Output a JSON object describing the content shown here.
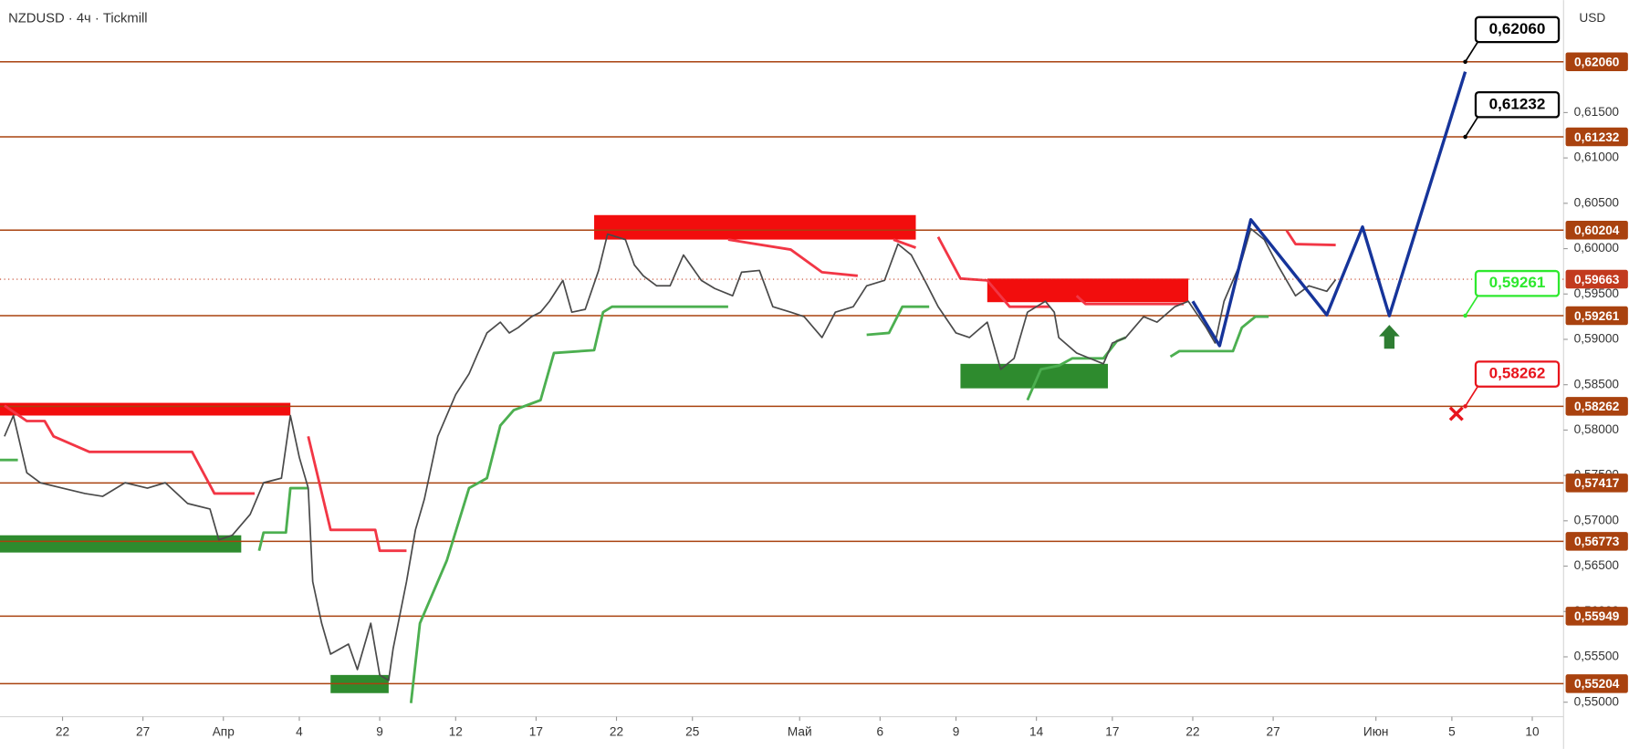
{
  "chart_data": {
    "type": "price-chart",
    "title": "NZDUSD · 4ч · Tickmill",
    "currency": "USD",
    "xlim": [
      0,
      350
    ],
    "ylim": [
      0.5484,
      0.6274
    ],
    "xticks": [
      {
        "value": 14,
        "label": "22"
      },
      {
        "value": 32,
        "label": "27"
      },
      {
        "value": 50,
        "label": "Апр"
      },
      {
        "value": 67,
        "label": "4"
      },
      {
        "value": 85,
        "label": "9"
      },
      {
        "value": 102,
        "label": "12"
      },
      {
        "value": 120,
        "label": "17"
      },
      {
        "value": 138,
        "label": "22"
      },
      {
        "value": 155,
        "label": "25"
      },
      {
        "value": 179,
        "label": "Май"
      },
      {
        "value": 197,
        "label": "6"
      },
      {
        "value": 214,
        "label": "9"
      },
      {
        "value": 232,
        "label": "14"
      },
      {
        "value": 249,
        "label": "17"
      },
      {
        "value": 267,
        "label": "22"
      },
      {
        "value": 285,
        "label": "27"
      },
      {
        "value": 308,
        "label": "Июн"
      },
      {
        "value": 325,
        "label": "5"
      },
      {
        "value": 343,
        "label": "10"
      }
    ],
    "yticks": [
      {
        "value": 0.55,
        "label": "0,55000"
      },
      {
        "value": 0.555,
        "label": "0,55500"
      },
      {
        "value": 0.56,
        "label": "0,56000"
      },
      {
        "value": 0.565,
        "label": "0,56500"
      },
      {
        "value": 0.57,
        "label": "0,57000"
      },
      {
        "value": 0.575,
        "label": "0,57500"
      },
      {
        "value": 0.58,
        "label": "0,58000"
      },
      {
        "value": 0.585,
        "label": "0,58500"
      },
      {
        "value": 0.59,
        "label": "0,59000"
      },
      {
        "value": 0.595,
        "label": "0,59500"
      },
      {
        "value": 0.6,
        "label": "0,60000"
      },
      {
        "value": 0.605,
        "label": "0,60500"
      },
      {
        "value": 0.61,
        "label": "0,61000"
      },
      {
        "value": 0.615,
        "label": "0,61500"
      }
    ],
    "grid": false,
    "price": {
      "color": "#4a4a4a",
      "x": [
        1,
        3,
        6,
        9,
        14,
        19,
        23,
        28,
        33,
        37,
        42,
        47,
        49,
        52,
        56,
        59,
        63,
        65,
        67,
        69,
        70,
        72,
        74,
        78,
        80,
        83,
        85,
        87,
        88,
        91,
        93,
        95,
        98,
        100,
        102,
        105,
        107,
        109,
        112,
        114,
        116,
        119,
        121,
        123,
        126,
        128,
        131,
        134,
        136,
        140,
        142,
        144,
        147,
        150,
        153,
        157,
        160,
        164,
        166,
        170,
        173,
        177,
        180,
        184,
        187,
        191,
        194,
        198,
        201,
        204,
        207,
        210,
        214,
        217,
        221,
        224,
        227,
        230,
        234,
        236,
        237,
        241,
        244,
        247,
        249,
        252,
        256,
        259,
        263,
        266,
        270,
        272,
        274,
        278,
        280,
        283,
        286,
        290,
        293,
        297,
        299
      ],
      "values": [
        0.5793,
        0.5816,
        0.5753,
        0.5742,
        0.5736,
        0.573,
        0.5727,
        0.5742,
        0.5736,
        0.5742,
        0.5719,
        0.5713,
        0.5679,
        0.5684,
        0.5707,
        0.5742,
        0.5747,
        0.5816,
        0.577,
        0.5736,
        0.5633,
        0.5587,
        0.5553,
        0.5564,
        0.5536,
        0.5587,
        0.553,
        0.5524,
        0.5559,
        0.5633,
        0.569,
        0.5724,
        0.5793,
        0.5816,
        0.5839,
        0.5862,
        0.5885,
        0.5907,
        0.5919,
        0.5907,
        0.5913,
        0.5925,
        0.593,
        0.5942,
        0.5965,
        0.593,
        0.5933,
        0.5976,
        0.6016,
        0.601,
        0.5982,
        0.597,
        0.5959,
        0.5959,
        0.5993,
        0.5965,
        0.5956,
        0.5948,
        0.5974,
        0.5976,
        0.5936,
        0.593,
        0.5925,
        0.5902,
        0.593,
        0.5936,
        0.5959,
        0.5965,
        0.6005,
        0.5993,
        0.5965,
        0.5936,
        0.5907,
        0.5902,
        0.5919,
        0.5867,
        0.5879,
        0.593,
        0.5942,
        0.593,
        0.5902,
        0.5885,
        0.5879,
        0.5873,
        0.5896,
        0.5902,
        0.5925,
        0.5919,
        0.5936,
        0.5942,
        0.5913,
        0.5896,
        0.5942,
        0.5988,
        0.6022,
        0.601,
        0.5982,
        0.5948,
        0.5959,
        0.5953,
        0.5966
      ]
    },
    "resistance_line": {
      "color": "#f23645",
      "x": [
        1,
        6,
        10,
        12,
        20,
        43,
        48,
        57,
        null,
        69,
        74,
        84,
        85,
        91,
        null,
        163,
        177,
        184,
        192,
        null,
        200,
        205,
        null,
        210,
        215,
        221,
        226,
        235,
        null,
        241,
        243,
        265,
        null,
        288,
        290,
        299
      ],
      "values": [
        0.5827,
        0.581,
        0.581,
        0.5793,
        0.5776,
        0.5776,
        0.573,
        0.573,
        null,
        0.5793,
        0.569,
        0.569,
        0.5667,
        0.5667,
        null,
        0.601,
        0.5999,
        0.5974,
        0.597,
        null,
        0.601,
        0.6001,
        null,
        0.6013,
        0.5967,
        0.5965,
        0.5936,
        0.5936,
        null,
        0.5948,
        0.5939,
        0.5939,
        null,
        0.602,
        0.6005,
        0.6004
      ]
    },
    "support_line": {
      "color": "#4caf50",
      "x": [
        0,
        4,
        null,
        58,
        59,
        64,
        65,
        69,
        null,
        92,
        94,
        100,
        105,
        109,
        112,
        115,
        121,
        124,
        133,
        135,
        137,
        163,
        null,
        194,
        199,
        202,
        208,
        null,
        230,
        233,
        237,
        240,
        247,
        250,
        252,
        null,
        262,
        264,
        276,
        278,
        281,
        284
      ],
      "values": [
        0.5767,
        0.5767,
        null,
        0.5667,
        0.5687,
        0.5687,
        0.5736,
        0.5736,
        null,
        0.5499,
        0.5587,
        0.5656,
        0.5736,
        0.5747,
        0.5805,
        0.5822,
        0.5833,
        0.5885,
        0.5888,
        0.593,
        0.5936,
        0.5936,
        null,
        0.5905,
        0.5907,
        0.5936,
        0.5936,
        null,
        0.5833,
        0.5867,
        0.5871,
        0.5879,
        0.5879,
        0.5898,
        0.5902,
        null,
        0.5881,
        0.5887,
        0.5887,
        0.5913,
        0.5925,
        0.5925
      ]
    },
    "zones": [
      {
        "x": [
          0,
          65
        ],
        "y": [
          0.5816,
          0.583
        ],
        "color": "#f20d0d"
      },
      {
        "x": [
          0,
          54
        ],
        "y": [
          0.5665,
          0.5684
        ],
        "color": "#2e8b2e"
      },
      {
        "x": [
          74,
          87
        ],
        "y": [
          0.551,
          0.553
        ],
        "color": "#2e8b2e"
      },
      {
        "x": [
          133,
          205
        ],
        "y": [
          0.601,
          0.6037
        ],
        "color": "#f20d0d"
      },
      {
        "x": [
          221,
          266
        ],
        "y": [
          0.5941,
          0.5967
        ],
        "color": "#f20d0d"
      },
      {
        "x": [
          215,
          248
        ],
        "y": [
          0.5846,
          0.5873
        ],
        "color": "#2e8b2e"
      }
    ],
    "levels": [
      {
        "value": 0.6206,
        "label": "0,62060"
      },
      {
        "value": 0.61232,
        "label": "0,61232"
      },
      {
        "value": 0.60204,
        "label": "0,60204"
      },
      {
        "value": 0.59261,
        "label": "0,59261"
      },
      {
        "value": 0.58262,
        "label": "0,58262"
      },
      {
        "value": 0.57417,
        "label": "0,57417"
      },
      {
        "value": 0.56773,
        "label": "0,56773"
      },
      {
        "value": 0.55949,
        "label": "0,55949"
      },
      {
        "value": 0.55204,
        "label": "0,55204"
      }
    ],
    "level_color": "#a9420f",
    "last_price": {
      "value": 0.59663,
      "label": "0,59663",
      "color": "#c23a1e"
    },
    "projection": {
      "color": "#16349a",
      "x": [
        267,
        273,
        280,
        297,
        305,
        311,
        328
      ],
      "values": [
        0.5942,
        0.5893,
        0.6032,
        0.5927,
        0.6024,
        0.5926,
        0.6195
      ]
    },
    "callouts": [
      {
        "x": 328,
        "value": 0.6206,
        "label": "0,62060",
        "color": "#000000"
      },
      {
        "x": 328,
        "value": 0.61232,
        "label": "0,61232",
        "color": "#000000"
      },
      {
        "x": 328,
        "value": 0.59261,
        "label": "0,59261",
        "color": "#2ee82e"
      },
      {
        "x": 328,
        "value": 0.58262,
        "label": "0,58262",
        "color": "#e8141c"
      }
    ],
    "arrow": {
      "x": 311,
      "value": 0.5916,
      "color": "#2e7d32"
    },
    "cross": {
      "x": 326,
      "value": 0.5818,
      "color": "#e8141c"
    }
  }
}
